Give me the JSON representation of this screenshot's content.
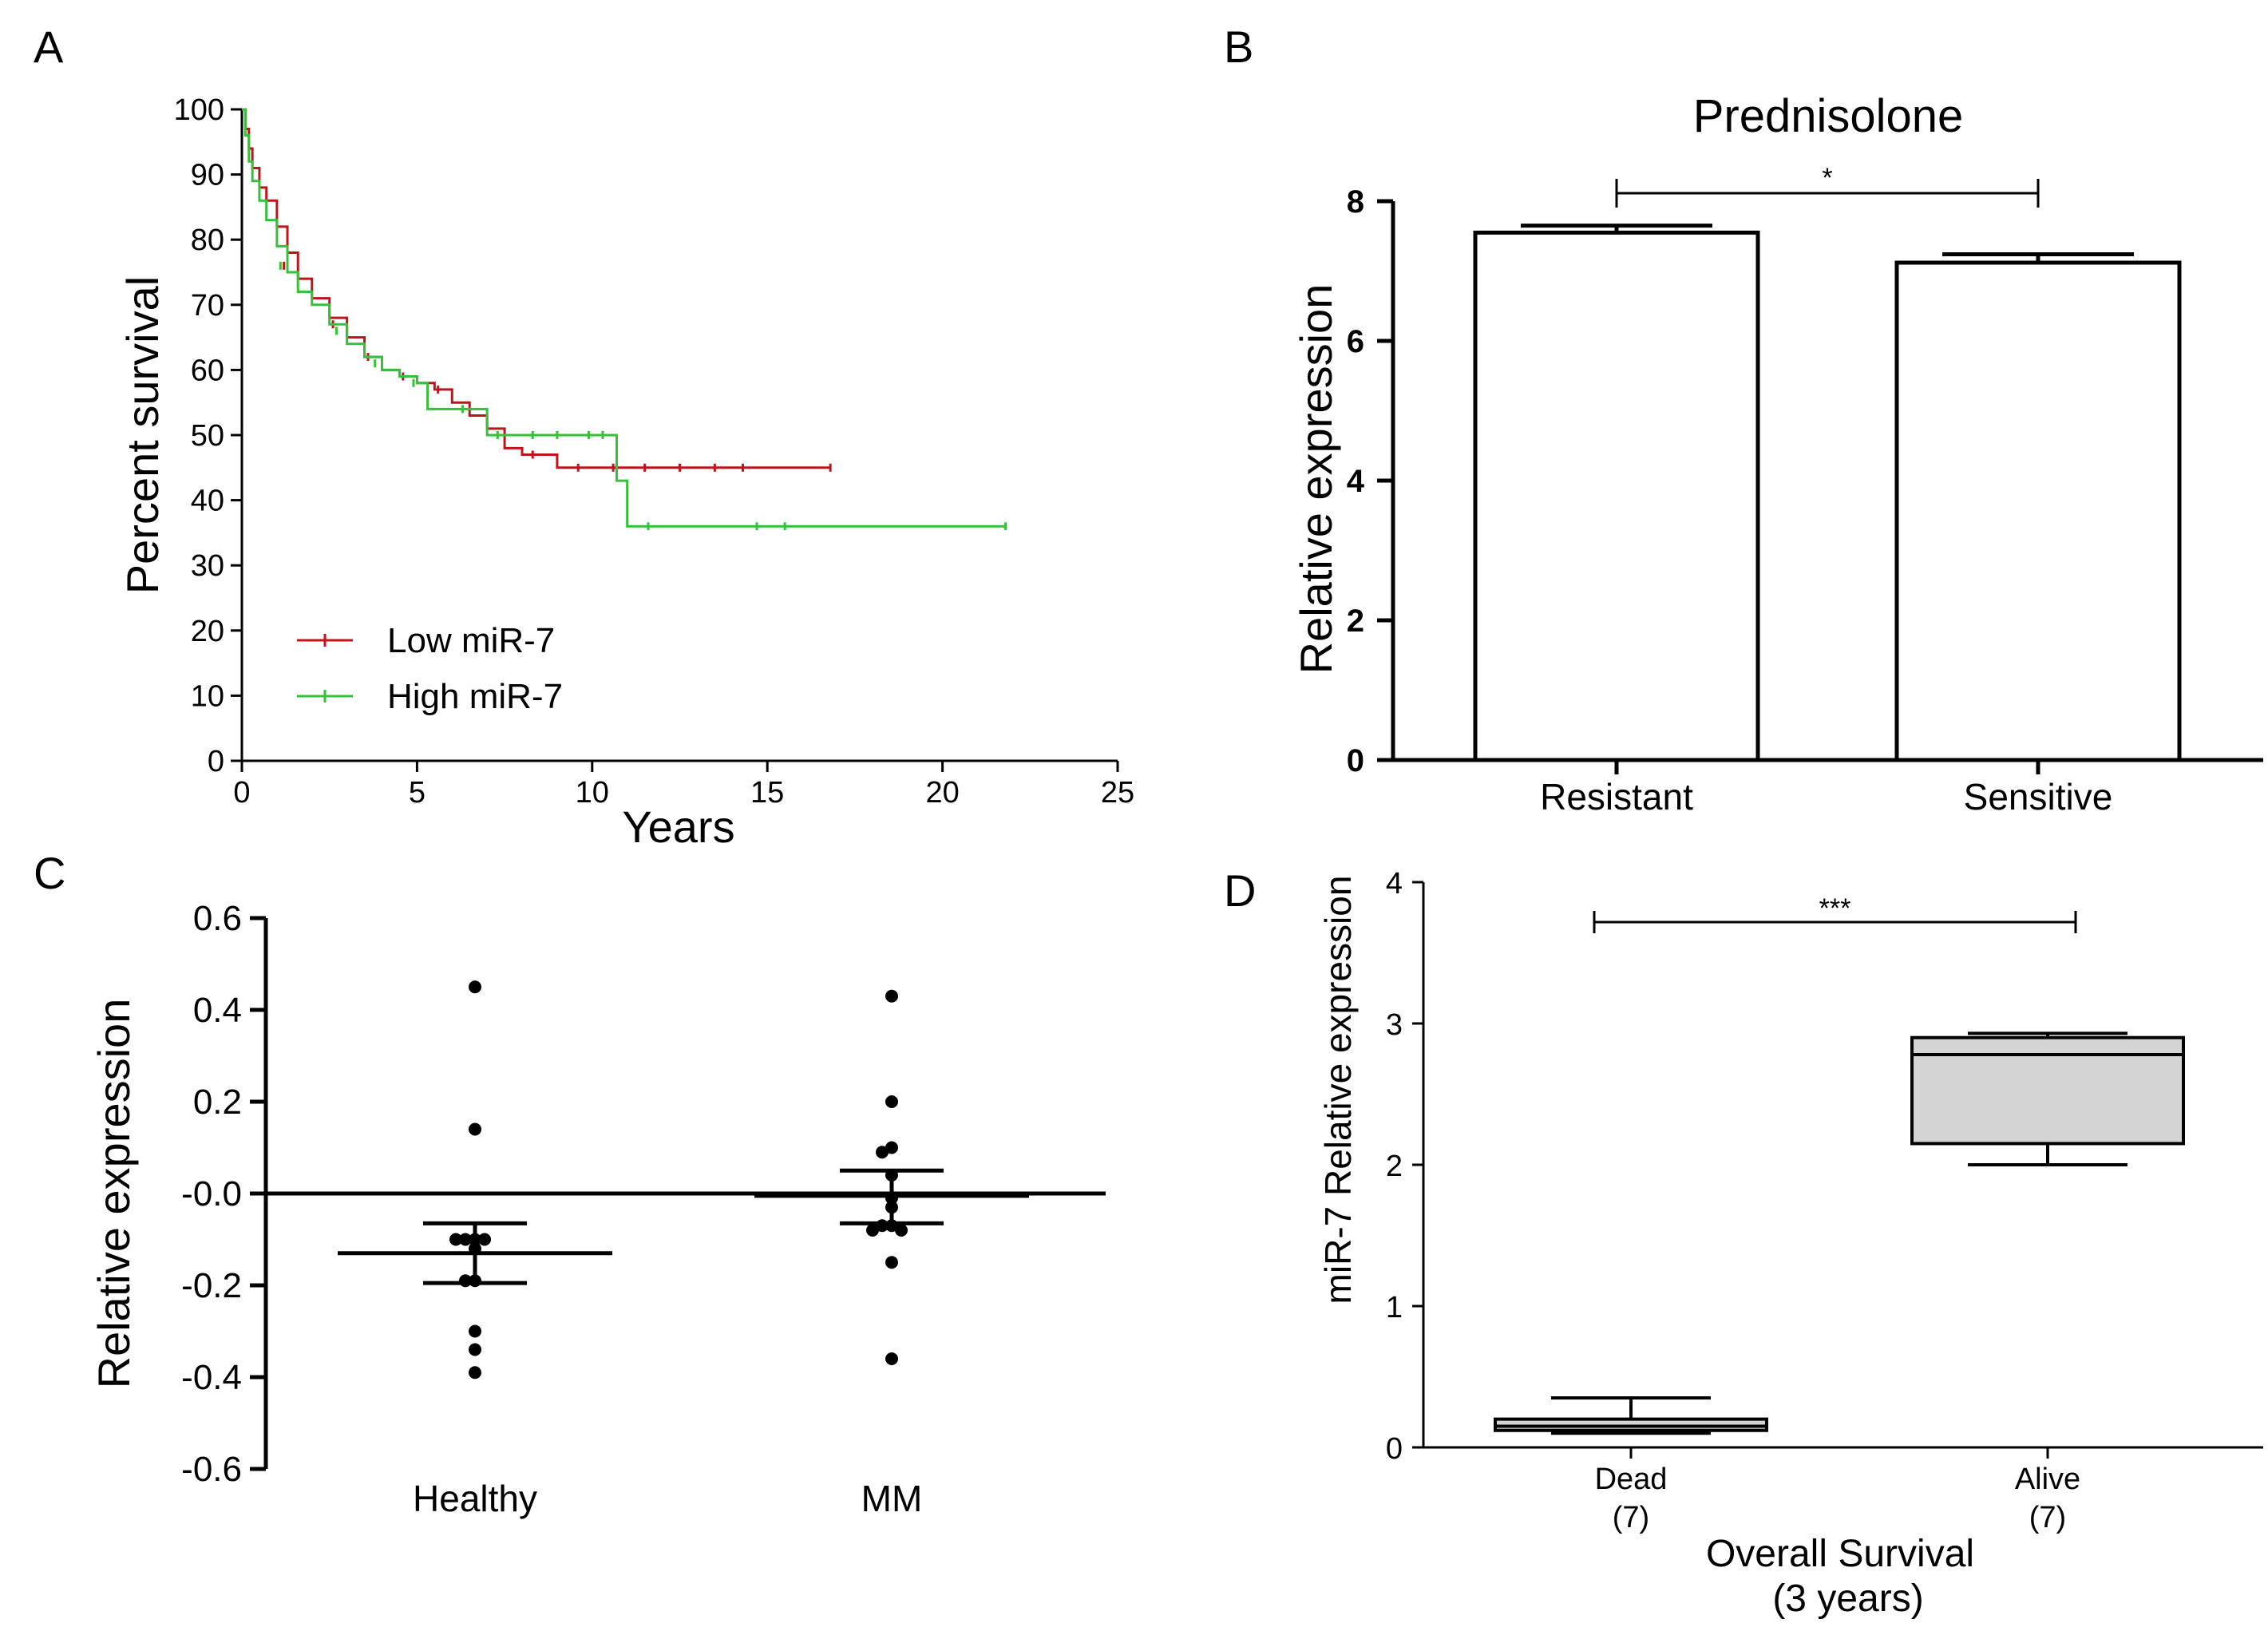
{
  "chart_data": [
    {
      "panel": "A",
      "type": "line",
      "subtype": "kaplan-meier",
      "title": "",
      "xlabel": "Years",
      "ylabel": "Percent survival",
      "xlim": [
        0,
        25
      ],
      "ylim": [
        0,
        100
      ],
      "xticks": [
        0,
        5,
        10,
        15,
        20,
        25
      ],
      "yticks": [
        0,
        10,
        20,
        30,
        40,
        50,
        60,
        70,
        80,
        90,
        100
      ],
      "legend_position": "bottom-left",
      "series": [
        {
          "name": "Low miR-7",
          "color": "#c0141b",
          "x": [
            0,
            0.1,
            0.2,
            0.3,
            0.5,
            0.7,
            1.0,
            1.3,
            1.6,
            2.0,
            2.5,
            3.0,
            3.5,
            4.0,
            4.5,
            5.0,
            5.5,
            6.0,
            6.5,
            7.0,
            7.5,
            8.0,
            9.0,
            10.0,
            12.0,
            14.0,
            16.8
          ],
          "y": [
            100,
            97,
            94,
            91,
            88,
            86,
            82,
            78,
            74,
            71,
            68,
            65,
            62,
            60,
            59,
            58,
            57,
            55,
            53,
            51,
            48,
            47,
            45,
            45,
            45,
            45,
            45
          ],
          "censor_x": [
            1.2,
            2.6,
            3.6,
            4.6,
            5.6,
            8.3,
            9.6,
            10.6,
            11.5,
            12.5,
            13.5,
            14.3,
            16.8
          ],
          "censor_y": [
            76,
            67,
            62,
            59,
            57,
            47,
            45,
            45,
            45,
            45,
            45,
            45,
            45
          ]
        },
        {
          "name": "High miR-7",
          "color": "#36c13a",
          "x": [
            0,
            0.1,
            0.2,
            0.3,
            0.5,
            0.7,
            1.0,
            1.3,
            1.6,
            2.0,
            2.5,
            3.0,
            3.5,
            4.0,
            4.5,
            5.0,
            5.3,
            6.0,
            6.8,
            7.0,
            8.0,
            9.5,
            10.7,
            11.0,
            12.0,
            15.0,
            21.8
          ],
          "y": [
            100,
            96,
            92,
            89,
            86,
            83,
            79,
            75,
            72,
            70,
            67,
            64,
            62,
            60,
            59,
            58,
            54,
            54,
            54,
            50,
            50,
            50,
            43,
            36,
            36,
            36,
            36
          ],
          "censor_x": [
            1.1,
            2.7,
            3.8,
            4.9,
            6.3,
            7.3,
            8.3,
            9.0,
            9.9,
            10.3,
            11.6,
            14.7,
            15.5,
            21.8
          ],
          "censor_y": [
            76,
            66,
            61,
            58,
            54,
            50,
            50,
            50,
            50,
            50,
            36,
            36,
            36,
            36
          ]
        }
      ]
    },
    {
      "panel": "B",
      "type": "bar",
      "title": "Prednisolone",
      "xlabel": "",
      "ylabel": "Relative expression",
      "ylim": [
        0,
        8
      ],
      "yticks": [
        0,
        2,
        4,
        6,
        8
      ],
      "categories": [
        "Resistant",
        "Sensitive"
      ],
      "values": [
        7.55,
        7.12
      ],
      "errors": [
        0.1,
        0.12
      ],
      "significance": "*"
    },
    {
      "panel": "C",
      "type": "scatter",
      "title": "",
      "xlabel": "",
      "ylabel": "Relative expression",
      "ylim": [
        -0.6,
        0.6
      ],
      "ytick_labels": [
        "-0.6",
        "-0.4",
        "-0.2",
        "-0.0",
        "0.2",
        "0.4",
        "0.6"
      ],
      "categories": [
        "Healthy",
        "MM"
      ],
      "groups": [
        {
          "name": "Healthy",
          "mean": -0.13,
          "sem_low": -0.195,
          "sem_high": -0.065,
          "points": [
            0.45,
            0.14,
            -0.1,
            -0.1,
            -0.1,
            -0.1,
            -0.12,
            -0.19,
            -0.19,
            -0.3,
            -0.34,
            -0.39
          ]
        },
        {
          "name": "MM",
          "mean": -0.005,
          "sem_low": -0.065,
          "sem_high": 0.05,
          "points": [
            0.43,
            0.2,
            0.1,
            0.09,
            0.04,
            -0.01,
            -0.03,
            -0.07,
            -0.07,
            -0.08,
            -0.08,
            -0.15,
            -0.36
          ]
        }
      ]
    },
    {
      "panel": "D",
      "type": "box",
      "title": "",
      "xlabel": "Overall Survival",
      "xlabel_sub": "(3 years)",
      "ylabel": "miR-7 Relative expression",
      "ylim": [
        0,
        4
      ],
      "yticks": [
        0,
        1,
        2,
        3,
        4
      ],
      "categories": [
        "Dead",
        "Alive"
      ],
      "category_counts": [
        "(7)",
        "(7)"
      ],
      "boxes": [
        {
          "name": "Dead",
          "min": 0.1,
          "q1": 0.12,
          "median": 0.15,
          "q3": 0.2,
          "max": 0.35
        },
        {
          "name": "Alive",
          "min": 2.0,
          "q1": 2.15,
          "median": 2.78,
          "q3": 2.9,
          "max": 2.93
        }
      ],
      "significance": "***"
    }
  ],
  "panels": {
    "a": {
      "letter": "A"
    },
    "b": {
      "letter": "B"
    },
    "c": {
      "letter": "C"
    },
    "d": {
      "letter": "D"
    }
  }
}
